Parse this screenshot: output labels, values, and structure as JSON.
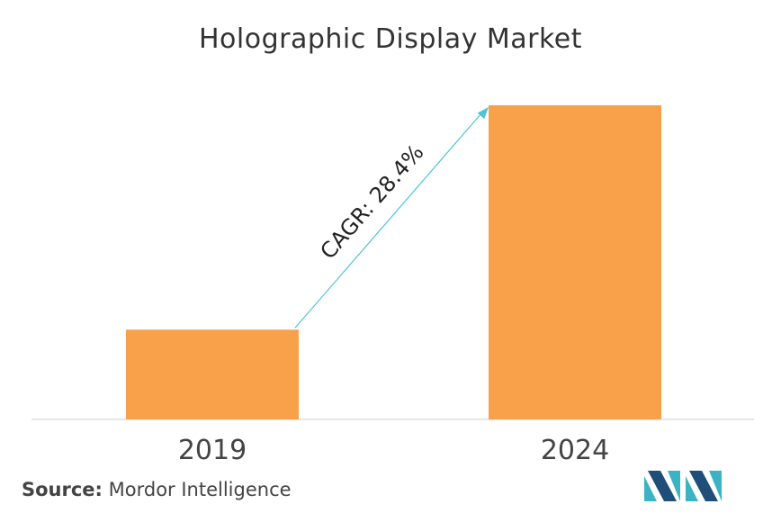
{
  "title": "Holographic Display Market",
  "chart_data": {
    "type": "bar",
    "categories": [
      "2019",
      "2024"
    ],
    "values": [
      1,
      3.5
    ],
    "ylim": [
      0,
      3.5
    ],
    "annotation": "CAGR: 28.4%",
    "grid": false,
    "legend": "none"
  },
  "colors": {
    "bar": "#F9A04A",
    "arrow": "#4FC3D9",
    "axis": "#DDDDDD",
    "logo_dark": "#1F4E79",
    "logo_light": "#3BB3C3"
  },
  "source": {
    "label": "Source:",
    "text": "Mordor Intelligence"
  },
  "logo": {
    "icon": "mordor-intelligence-logo-icon"
  }
}
